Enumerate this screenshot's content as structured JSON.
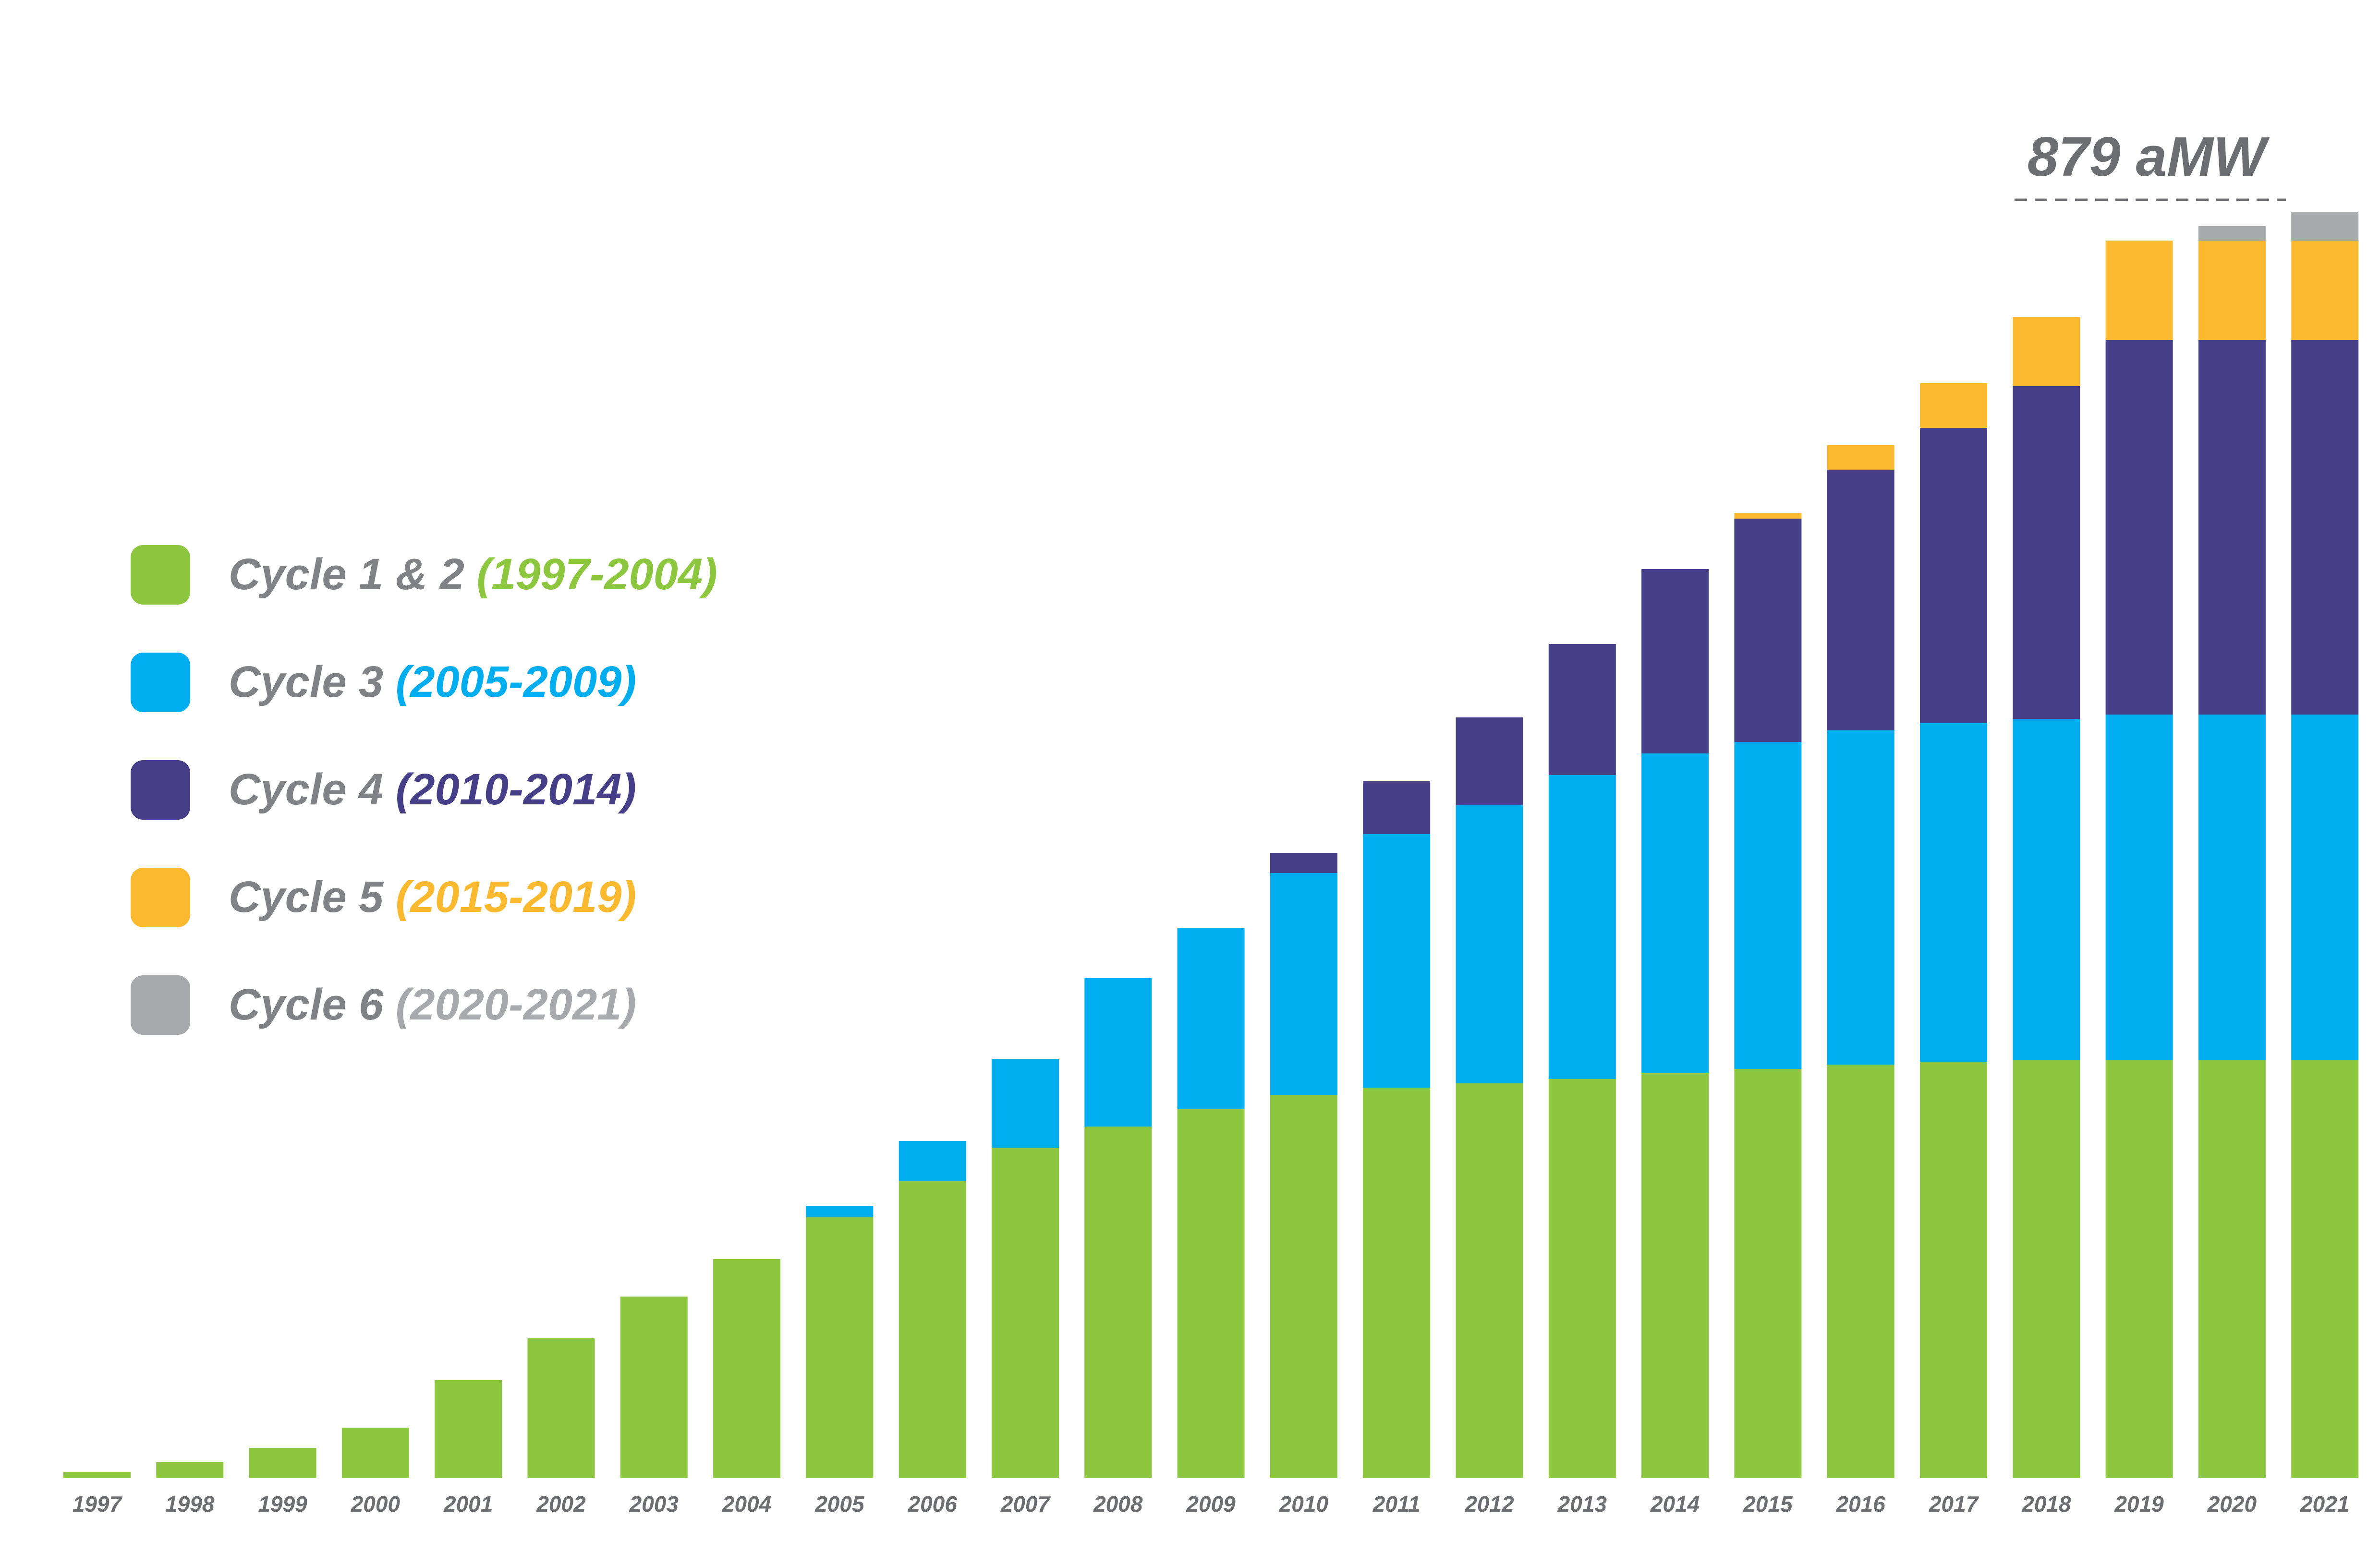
{
  "chart_data": {
    "type": "bar",
    "stacked": true,
    "categories": [
      "1997",
      "1998",
      "1999",
      "2000",
      "2001",
      "2002",
      "2003",
      "2004",
      "2005",
      "2006",
      "2007",
      "2008",
      "2009",
      "2010",
      "2011",
      "2012",
      "2013",
      "2014",
      "2015",
      "2016",
      "2017",
      "2018",
      "2019",
      "2020",
      "2021"
    ],
    "series": [
      {
        "name": "Cycle 1 & 2",
        "range": "(1997-2004)",
        "color": "#8dc63f",
        "values": [
          4,
          11,
          21,
          35,
          68,
          97,
          126,
          152,
          181,
          206,
          229,
          244,
          256,
          266,
          271,
          274,
          277,
          281,
          284,
          287,
          289,
          290,
          290,
          290,
          290
        ]
      },
      {
        "name": "Cycle 3",
        "range": "(2005-2009)",
        "color": "#00aeef",
        "values": [
          0,
          0,
          0,
          0,
          0,
          0,
          0,
          0,
          8,
          28,
          62,
          103,
          126,
          154,
          176,
          193,
          211,
          222,
          227,
          232,
          235,
          237,
          240,
          240,
          240
        ]
      },
      {
        "name": "Cycle 4",
        "range": "(2010-2014)",
        "color": "#463f88",
        "values": [
          0,
          0,
          0,
          0,
          0,
          0,
          0,
          0,
          0,
          0,
          0,
          0,
          0,
          14,
          37,
          61,
          91,
          128,
          155,
          181,
          205,
          231,
          260,
          260,
          260
        ]
      },
      {
        "name": "Cycle 5",
        "range": "(2015-2019)",
        "color": "#fbb930",
        "values": [
          0,
          0,
          0,
          0,
          0,
          0,
          0,
          0,
          0,
          0,
          0,
          0,
          0,
          0,
          0,
          0,
          0,
          0,
          4,
          17,
          31,
          48,
          69,
          69,
          69
        ]
      },
      {
        "name": "Cycle 6",
        "range": "(2020-2021)",
        "color": "#a7a9ac",
        "values": [
          0,
          0,
          0,
          0,
          0,
          0,
          0,
          0,
          0,
          0,
          0,
          0,
          0,
          0,
          0,
          0,
          0,
          0,
          0,
          0,
          0,
          0,
          0,
          10,
          20
        ]
      }
    ],
    "annotation": {
      "text": "879 aMW",
      "value": 879
    },
    "ylim": [
      0,
      900
    ],
    "xlabel": "",
    "ylabel": "",
    "grid": false,
    "legend_position": "left",
    "cycle_label_color": "#808285"
  }
}
